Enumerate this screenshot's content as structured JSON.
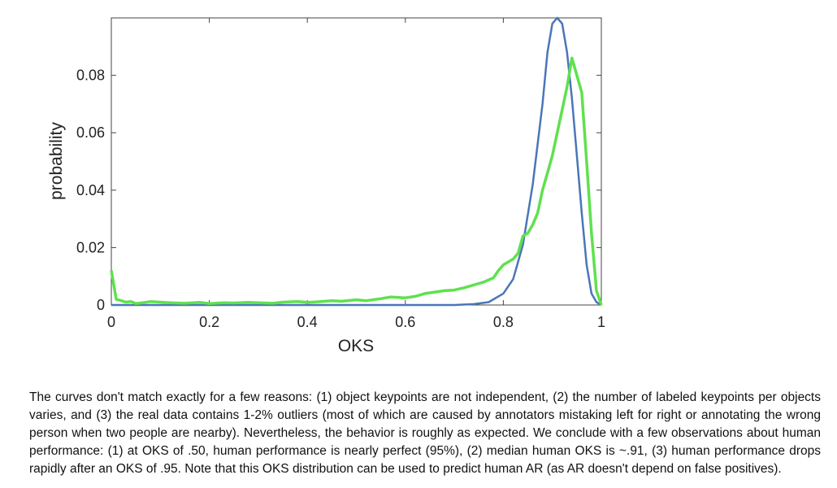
{
  "chart_data": {
    "type": "line",
    "xlabel": "OKS",
    "ylabel": "probability",
    "xlim": [
      0,
      1
    ],
    "ylim": [
      0,
      0.1
    ],
    "x_ticks": [
      "0",
      "0.2",
      "0.4",
      "0.6",
      "0.8",
      "1"
    ],
    "y_ticks": [
      "0",
      "0.02",
      "0.04",
      "0.06",
      "0.08"
    ],
    "grid": false,
    "series": [
      {
        "color": "#4a76b8",
        "x": [
          0,
          0.5,
          0.7,
          0.74,
          0.77,
          0.8,
          0.82,
          0.84,
          0.86,
          0.88,
          0.89,
          0.9,
          0.91,
          0.92,
          0.93,
          0.94,
          0.95,
          0.96,
          0.97,
          0.98,
          0.99,
          1.0
        ],
        "y": [
          0,
          0,
          0,
          0.0003,
          0.001,
          0.004,
          0.009,
          0.021,
          0.042,
          0.07,
          0.088,
          0.098,
          0.1,
          0.098,
          0.088,
          0.072,
          0.052,
          0.032,
          0.014,
          0.004,
          0.001,
          0
        ]
      },
      {
        "color": "#5fe14e",
        "x": [
          0,
          0.01,
          0.02,
          0.03,
          0.04,
          0.05,
          0.06,
          0.08,
          0.1,
          0.12,
          0.15,
          0.18,
          0.2,
          0.23,
          0.25,
          0.28,
          0.3,
          0.33,
          0.35,
          0.38,
          0.4,
          0.42,
          0.45,
          0.47,
          0.5,
          0.52,
          0.55,
          0.57,
          0.6,
          0.62,
          0.64,
          0.66,
          0.68,
          0.7,
          0.72,
          0.73,
          0.75,
          0.76,
          0.78,
          0.79,
          0.8,
          0.81,
          0.82,
          0.83,
          0.84,
          0.85,
          0.86,
          0.87,
          0.88,
          0.89,
          0.9,
          0.91,
          0.92,
          0.93,
          0.94,
          0.95,
          0.96,
          0.97,
          0.98,
          0.99,
          1.0
        ],
        "y": [
          0.012,
          0.002,
          0.0015,
          0.001,
          0.0012,
          0.0005,
          0.0007,
          0.0012,
          0.001,
          0.0008,
          0.0006,
          0.0009,
          0.0005,
          0.0008,
          0.0007,
          0.0009,
          0.0008,
          0.0006,
          0.001,
          0.0012,
          0.0009,
          0.0011,
          0.0015,
          0.0013,
          0.0018,
          0.0015,
          0.0022,
          0.0028,
          0.0025,
          0.003,
          0.004,
          0.0045,
          0.005,
          0.0052,
          0.006,
          0.0065,
          0.0075,
          0.008,
          0.0095,
          0.012,
          0.014,
          0.015,
          0.016,
          0.018,
          0.024,
          0.025,
          0.028,
          0.032,
          0.04,
          0.046,
          0.052,
          0.06,
          0.068,
          0.076,
          0.086,
          0.08,
          0.074,
          0.05,
          0.025,
          0.005,
          0
        ]
      }
    ]
  },
  "caption": "The curves don't match exactly for a few reasons: (1) object keypoints are not independent, (2) the number of labeled keypoints per objects varies, and (3) the real data contains 1-2% outliers (most of which are caused by annotators mistaking left for right or annotating the wrong person when two people are nearby). Nevertheless, the behavior is roughly as expected. We conclude with a few observations about human performance: (1) at OKS of .50, human performance is nearly perfect (95%), (2) median human OKS is ~.91, (3) human performance drops rapidly after an OKS of .95. Note that this OKS distribution can be used to predict human AR (as AR doesn't depend on false positives)."
}
